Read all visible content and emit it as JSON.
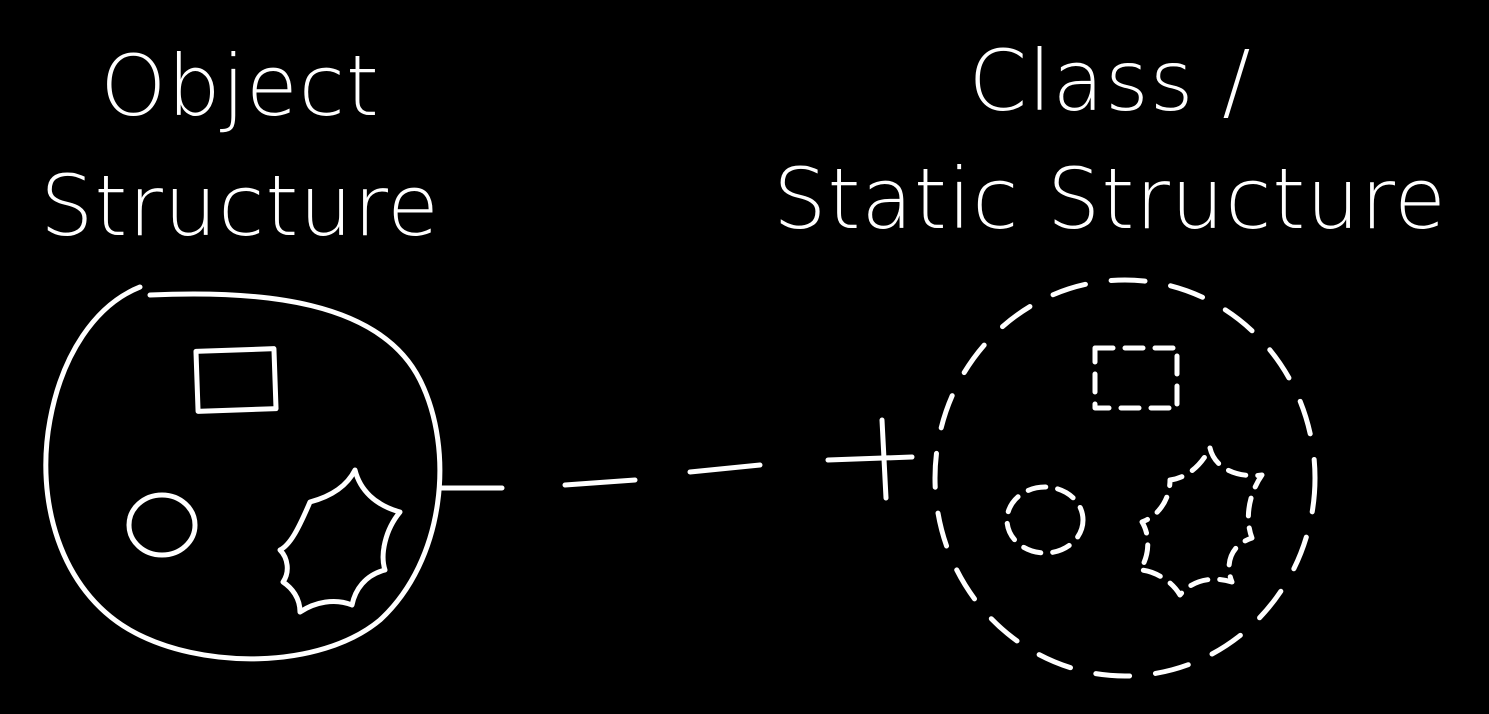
{
  "left_title": {
    "line1": "Object",
    "line2": "Structure"
  },
  "right_title": {
    "line1": "Class /",
    "line2": "Static Structure"
  },
  "colors": {
    "background": "#000000",
    "ink": "#ffffff"
  }
}
